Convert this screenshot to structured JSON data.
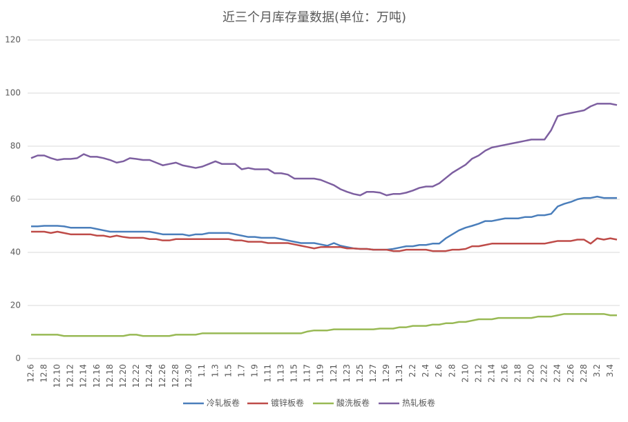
{
  "chart_data": {
    "type": "line",
    "title": "近三个月库存量数据(单位：万吨)",
    "categories": [
      "12.6",
      null,
      "12.8",
      null,
      "12.10",
      null,
      "12.12",
      null,
      "12.14",
      null,
      "12.16",
      null,
      "12.18",
      null,
      "12.20",
      null,
      "12.22",
      null,
      "12.24",
      null,
      "12.26",
      null,
      "12.28",
      null,
      "12.30",
      null,
      "1.1",
      null,
      "1.3",
      null,
      "1.5",
      null,
      "1.7",
      null,
      "1.9",
      null,
      "1.11",
      null,
      "1.13",
      null,
      "1.15",
      null,
      "1.17",
      null,
      "1.19",
      null,
      "1.21",
      null,
      "1.23",
      null,
      "1.25",
      null,
      "1.27",
      null,
      "1.29",
      null,
      "1.31",
      null,
      "2.2",
      null,
      "2.4",
      null,
      "2.6",
      null,
      "2.8",
      null,
      "2.10",
      null,
      "2.12",
      null,
      "2.14",
      null,
      "2.16",
      null,
      "2.18",
      null,
      "2.20",
      null,
      "2.22",
      null,
      "2.24",
      null,
      "2.26",
      null,
      "2.28",
      null,
      "3.2",
      null,
      "3.4",
      null
    ],
    "series": [
      {
        "name": "冷轧板卷",
        "color": "#4a7ebb",
        "values": [
          49.8,
          49.8,
          50,
          50,
          50,
          49.8,
          49.3,
          49.3,
          49.3,
          49.3,
          48.8,
          48.3,
          47.8,
          47.8,
          47.8,
          47.8,
          47.8,
          47.8,
          47.8,
          47.3,
          46.8,
          46.8,
          46.8,
          46.8,
          46.3,
          46.8,
          46.8,
          47.3,
          47.3,
          47.3,
          47.3,
          46.8,
          46.3,
          45.8,
          45.8,
          45.5,
          45.5,
          45.5,
          45,
          44.5,
          44,
          43.5,
          43.5,
          43.5,
          43,
          42.5,
          43.5,
          42.5,
          42,
          41.5,
          41.3,
          41.3,
          41,
          41,
          41,
          41.3,
          41.8,
          42.3,
          42.3,
          42.8,
          42.8,
          43.3,
          43.3,
          45.3,
          46.8,
          48.3,
          49.3,
          50,
          50.8,
          51.8,
          51.8,
          52.3,
          52.8,
          52.8,
          52.8,
          53.3,
          53.3,
          54,
          54,
          54.5,
          57.3,
          58.3,
          59,
          60,
          60.5,
          60.5,
          61,
          60.5,
          60.5,
          60.5
        ]
      },
      {
        "name": "镀锌板卷",
        "color": "#be4b48",
        "values": [
          47.8,
          47.8,
          47.8,
          47.3,
          47.8,
          47.3,
          46.8,
          46.8,
          46.8,
          46.8,
          46.3,
          46.3,
          45.8,
          46.3,
          45.8,
          45.5,
          45.5,
          45.5,
          45,
          45,
          44.5,
          44.5,
          45,
          45,
          45,
          45,
          45,
          45,
          45,
          45,
          45,
          44.5,
          44.5,
          44,
          44,
          44,
          43.5,
          43.5,
          43.5,
          43.5,
          43,
          42.5,
          42,
          41.5,
          42,
          42,
          42,
          42,
          41.5,
          41.5,
          41.3,
          41.3,
          41,
          41,
          41,
          40.5,
          40.5,
          41,
          41,
          41,
          41,
          40.5,
          40.5,
          40.5,
          41,
          41,
          41.3,
          42.3,
          42.3,
          42.8,
          43.3,
          43.3,
          43.3,
          43.3,
          43.3,
          43.3,
          43.3,
          43.3,
          43.3,
          43.8,
          44.3,
          44.3,
          44.3,
          44.8,
          44.8,
          43.3,
          45.3,
          44.8,
          45.3,
          44.8
        ]
      },
      {
        "name": "酸洗板卷",
        "color": "#98b954",
        "values": [
          9,
          9,
          9,
          9,
          9,
          8.5,
          8.5,
          8.5,
          8.5,
          8.5,
          8.5,
          8.5,
          8.5,
          8.5,
          8.5,
          9,
          9,
          8.5,
          8.5,
          8.5,
          8.5,
          8.5,
          9,
          9,
          9,
          9,
          9.5,
          9.5,
          9.5,
          9.5,
          9.5,
          9.5,
          9.5,
          9.5,
          9.5,
          9.5,
          9.5,
          9.5,
          9.5,
          9.5,
          9.5,
          9.5,
          10.2,
          10.6,
          10.6,
          10.6,
          11,
          11,
          11,
          11,
          11,
          11,
          11,
          11.3,
          11.3,
          11.3,
          11.8,
          11.8,
          12.3,
          12.3,
          12.3,
          12.8,
          12.8,
          13.3,
          13.3,
          13.8,
          13.8,
          14.3,
          14.8,
          14.8,
          14.8,
          15.3,
          15.3,
          15.3,
          15.3,
          15.3,
          15.3,
          15.8,
          15.8,
          15.8,
          16.3,
          16.8,
          16.8,
          16.8,
          16.8,
          16.8,
          16.8,
          16.8,
          16.3,
          16.3
        ]
      },
      {
        "name": "热轧板卷",
        "color": "#7d5fa0",
        "values": [
          75.5,
          76.5,
          76.5,
          75.5,
          74.8,
          75.2,
          75.2,
          75.5,
          77,
          76,
          76,
          75.5,
          74.8,
          73.8,
          74.3,
          75.5,
          75.2,
          74.8,
          74.8,
          73.8,
          72.8,
          73.3,
          73.8,
          72.8,
          72.3,
          71.8,
          72.3,
          73.3,
          74.3,
          73.3,
          73.3,
          73.3,
          71.3,
          71.8,
          71.3,
          71.3,
          71.3,
          69.8,
          69.8,
          69.3,
          67.8,
          67.8,
          67.8,
          67.8,
          67.3,
          66.3,
          65.3,
          63.8,
          62.8,
          62,
          61.5,
          62.8,
          62.8,
          62.5,
          61.5,
          62,
          62,
          62.5,
          63.3,
          64.3,
          64.8,
          64.8,
          66,
          68,
          70,
          71.5,
          73,
          75.3,
          76.5,
          78.3,
          79.5,
          80,
          80.5,
          81,
          81.5,
          82,
          82.5,
          82.5,
          82.5,
          86,
          91.3,
          92,
          92.5,
          93,
          93.5,
          95,
          96,
          96,
          96,
          95.5
        ]
      }
    ],
    "ylim": [
      0,
      120
    ],
    "yticks": [
      0,
      20,
      40,
      60,
      80,
      100,
      120
    ],
    "grid": true,
    "legend": "bottom"
  }
}
